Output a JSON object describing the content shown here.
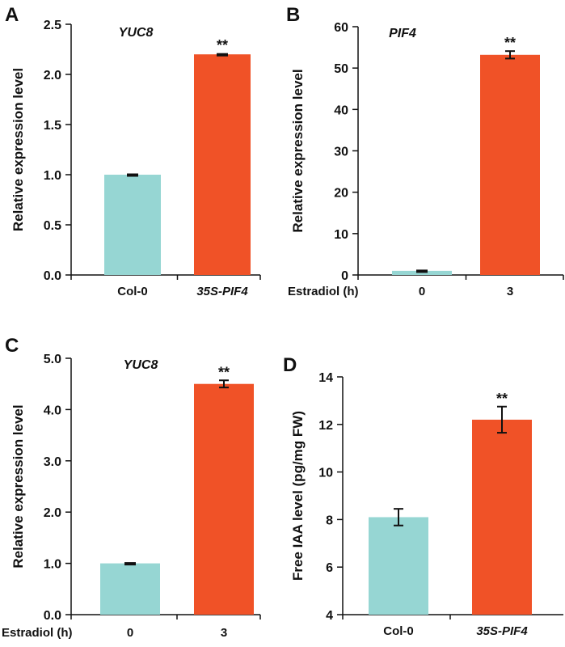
{
  "colors": {
    "control": "#96d6d3",
    "treatment": "#f05227"
  },
  "chart_data": [
    {
      "panel": "A",
      "type": "bar",
      "gene_label": "YUC8",
      "ylabel": "Relative expression level",
      "ylim": [
        0,
        2.5
      ],
      "yticks": [
        "0.0",
        "0.5",
        "1.0",
        "1.5",
        "2.0",
        "2.5"
      ],
      "categories": [
        "Col-0",
        "35S-PIF4"
      ],
      "category_italic": [
        false,
        true
      ],
      "values": [
        1.0,
        2.2
      ],
      "errors": [
        0.01,
        0.01
      ],
      "significance": [
        "",
        "**"
      ],
      "xprefix": ""
    },
    {
      "panel": "B",
      "type": "bar",
      "gene_label": "PIF4",
      "ylabel": "Relative expression level",
      "ylim": [
        0,
        60
      ],
      "yticks": [
        "0",
        "10",
        "20",
        "30",
        "40",
        "50",
        "60"
      ],
      "categories": [
        "0",
        "3"
      ],
      "category_italic": [
        false,
        false
      ],
      "values": [
        1.0,
        53.2
      ],
      "errors": [
        0.1,
        0.9
      ],
      "significance": [
        "",
        "**"
      ],
      "xprefix": "Estradiol (h)"
    },
    {
      "panel": "C",
      "type": "bar",
      "gene_label": "YUC8",
      "ylabel": "Relative expression level",
      "ylim": [
        0,
        5.0
      ],
      "yticks": [
        "0.0",
        "1.0",
        "2.0",
        "3.0",
        "4.0",
        "5.0"
      ],
      "categories": [
        "0",
        "3"
      ],
      "category_italic": [
        false,
        false
      ],
      "values": [
        1.0,
        4.5
      ],
      "errors": [
        0.02,
        0.07
      ],
      "significance": [
        "",
        "**"
      ],
      "xprefix": "Estradiol (h)"
    },
    {
      "panel": "D",
      "type": "bar",
      "gene_label": "",
      "ylabel": "Free IAA level (pg/mg FW)",
      "ylim": [
        4,
        14
      ],
      "yticks": [
        "4",
        "6",
        "8",
        "10",
        "12",
        "14"
      ],
      "categories": [
        "Col-0",
        "35S-PIF4"
      ],
      "category_italic": [
        false,
        true
      ],
      "values": [
        8.1,
        12.2
      ],
      "errors": [
        0.35,
        0.55
      ],
      "significance": [
        "",
        "**"
      ],
      "xprefix": ""
    }
  ]
}
